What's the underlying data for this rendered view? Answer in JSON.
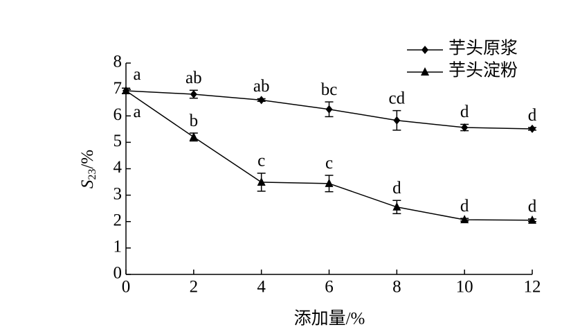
{
  "chart_data": {
    "type": "line",
    "xlabel": "添加量/%",
    "ylabel": {
      "main": "S",
      "sub": "23",
      "unit": "/%"
    },
    "x": [
      0,
      2,
      4,
      6,
      8,
      10,
      12
    ],
    "xlim": [
      0,
      12
    ],
    "xticks": [
      0,
      2,
      4,
      6,
      8,
      10,
      12
    ],
    "ylim": [
      0,
      8
    ],
    "yticks": [
      0,
      1,
      2,
      3,
      4,
      5,
      6,
      7,
      8
    ],
    "legend": "upper right",
    "series": [
      {
        "name": "芋头原浆",
        "color": "#000000",
        "marker": "diamond",
        "values": [
          6.95,
          6.82,
          6.6,
          6.25,
          5.83,
          5.56,
          5.51
        ],
        "errors": [
          0.1,
          0.15,
          0.05,
          0.28,
          0.37,
          0.12,
          0.05
        ],
        "letters": [
          "a",
          "ab",
          "ab",
          "bc",
          "cd",
          "d",
          "d"
        ]
      },
      {
        "name": "芋头淀粉",
        "color": "#000000",
        "marker": "triangle",
        "values": [
          6.95,
          5.2,
          3.49,
          3.44,
          2.55,
          2.07,
          2.05
        ],
        "errors": [
          0.1,
          0.15,
          0.34,
          0.31,
          0.25,
          0.05,
          0.05
        ],
        "letters": [
          "a",
          "b",
          "c",
          "c",
          "d",
          "d",
          "d"
        ]
      }
    ]
  }
}
